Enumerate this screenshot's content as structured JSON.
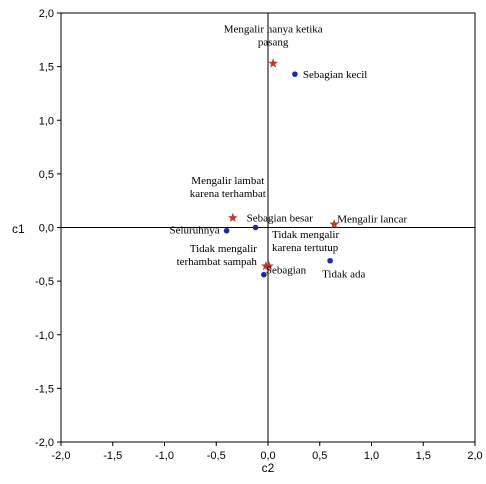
{
  "chart_data": {
    "type": "scatter",
    "title": "",
    "xlabel": "c2",
    "ylabel": "c1",
    "xlim": [
      -2.0,
      2.0
    ],
    "ylim": [
      -2.0,
      2.0
    ],
    "x_ticks": [
      "-2,0",
      "-1,5",
      "-1,0",
      "-0,5",
      "0,0",
      "0,5",
      "1,0",
      "1,5",
      "2,0"
    ],
    "y_ticks": [
      "2,0",
      "1,5",
      "1,0",
      "0,5",
      "0,0",
      "-0,5",
      "-1,0",
      "-1,5",
      "-2,0"
    ],
    "reference_lines": {
      "x": 0,
      "y": 0
    },
    "grid": false,
    "legend": "none",
    "series": [
      {
        "marker": "star",
        "color": "#c0392b",
        "points": [
          {
            "x": 0.05,
            "y": 1.53,
            "label": [
              "Mengalir hanya ketika",
              "pasang"
            ]
          },
          {
            "x": -0.34,
            "y": 0.09,
            "label": [
              "Mengalir lambat",
              "karena terhambat"
            ]
          },
          {
            "x": 0.64,
            "y": 0.03,
            "label": [
              "Mengalir lancar"
            ]
          },
          {
            "x": 0.01,
            "y": -0.36,
            "label": [
              "Tidak mengalir",
              "karena tertutup"
            ]
          },
          {
            "x": -0.02,
            "y": -0.36,
            "label": [
              "Tidak mengalir",
              "terhambat sampah"
            ]
          }
        ]
      },
      {
        "marker": "circle",
        "color": "#1f2a9e",
        "points": [
          {
            "x": 0.26,
            "y": 1.43,
            "label": [
              "Sebagian kecil"
            ]
          },
          {
            "x": -0.12,
            "y": 0.0,
            "label": [
              "Sebagian besar"
            ]
          },
          {
            "x": -0.4,
            "y": -0.03,
            "label": [
              "Seluruhnya"
            ]
          },
          {
            "x": 0.6,
            "y": -0.31,
            "label": [
              "Tidak ada"
            ]
          },
          {
            "x": -0.04,
            "y": -0.44,
            "label": [
              "Sebagian"
            ]
          }
        ]
      }
    ]
  }
}
